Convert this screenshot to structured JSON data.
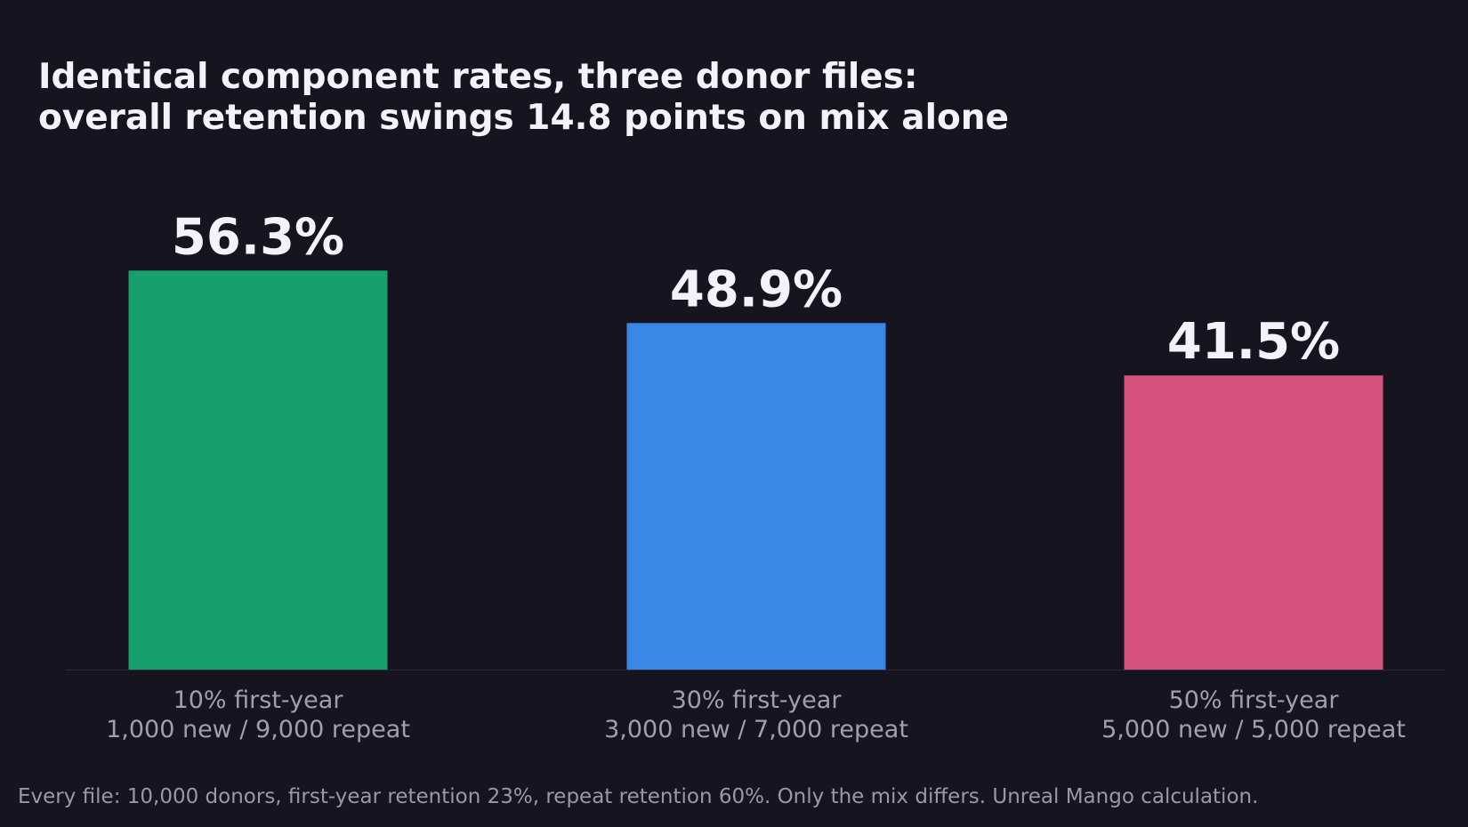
{
  "title": {
    "line1": "Identical component rates, three donor files:",
    "line2": "overall retention swings 14.8 points on mix alone"
  },
  "footnote": "Every file: 10,000 donors, first-year retention 23%, repeat retention 60%. Only the mix differs. Unreal Mango calculation.",
  "colors": {
    "background": "#16151f",
    "axis": "#2c2b36",
    "value_label": "#f4f2f8",
    "category_label": "#a29fad"
  },
  "chart_data": {
    "type": "bar",
    "categories": [
      [
        "10% first-year",
        "1,000 new / 9,000 repeat"
      ],
      [
        "30% first-year",
        "3,000 new / 7,000 repeat"
      ],
      [
        "50% first-year",
        "5,000 new / 5,000 repeat"
      ]
    ],
    "values": [
      56.3,
      48.9,
      41.5
    ],
    "value_labels": [
      "56.3%",
      "48.9%",
      "41.5%"
    ],
    "bar_colors": [
      "#17a06e",
      "#3987e5",
      "#d5527e"
    ],
    "ylim": [
      0,
      60
    ],
    "grid": false,
    "legend": "none"
  }
}
